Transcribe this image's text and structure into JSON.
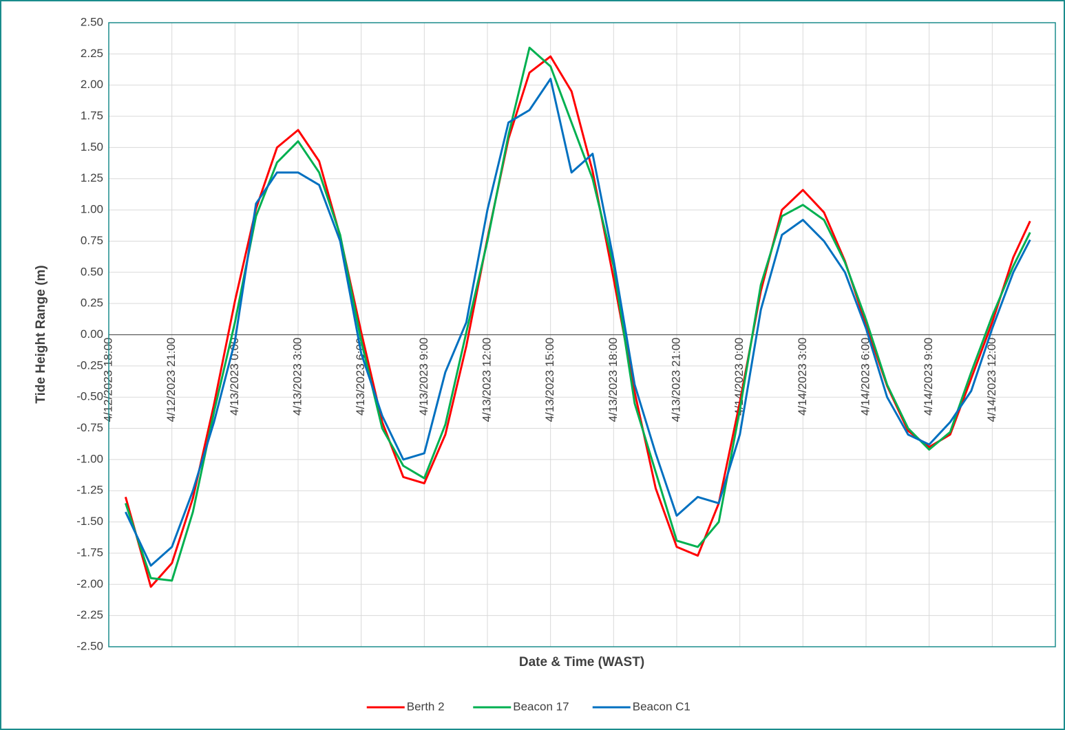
{
  "chart_data": {
    "type": "line",
    "y_label": "Tide Height Range (m)",
    "x_label": "Date & Time (WAST)",
    "x": [
      0.8,
      2,
      3,
      4,
      5,
      6,
      7,
      8,
      9,
      10,
      11,
      12,
      13,
      14,
      15,
      16,
      17,
      18,
      19,
      20,
      21,
      22,
      23,
      24,
      25,
      26,
      27,
      28,
      29,
      30,
      31,
      32,
      33,
      34,
      35,
      36,
      37,
      38,
      39,
      40,
      41,
      42,
      43,
      43.8
    ],
    "series": [
      {
        "name": "Berth 2",
        "color": "#ff0000",
        "values": [
          -1.3,
          -2.02,
          -1.83,
          -1.31,
          -0.56,
          0.27,
          1.01,
          1.5,
          1.64,
          1.39,
          0.79,
          0.02,
          -0.7,
          -1.14,
          -1.19,
          -0.8,
          -0.09,
          0.77,
          1.57,
          2.1,
          2.23,
          1.95,
          1.31,
          0.45,
          -0.46,
          -1.23,
          -1.7,
          -1.77,
          -1.35,
          -0.54,
          0.35,
          1.0,
          1.16,
          0.98,
          0.59,
          0.08,
          -0.41,
          -0.77,
          -0.9,
          -0.8,
          -0.35,
          0.1,
          0.62,
          0.91
        ]
      },
      {
        "name": "Beacon 17",
        "color": "#00b050",
        "values": [
          -1.35,
          -1.95,
          -1.97,
          -1.42,
          -0.62,
          0.1,
          0.95,
          1.38,
          1.55,
          1.3,
          0.8,
          -0.05,
          -0.75,
          -1.05,
          -1.15,
          -0.72,
          0.02,
          0.75,
          1.6,
          2.3,
          2.15,
          1.7,
          1.25,
          0.55,
          -0.55,
          -1.1,
          -1.65,
          -1.7,
          -1.5,
          -0.6,
          0.4,
          0.95,
          1.04,
          0.92,
          0.58,
          0.12,
          -0.4,
          -0.75,
          -0.92,
          -0.78,
          -0.3,
          0.15,
          0.55,
          0.82
        ]
      },
      {
        "name": "Beacon C1",
        "color": "#0070c0",
        "values": [
          -1.42,
          -1.85,
          -1.7,
          -1.25,
          -0.7,
          -0.05,
          1.05,
          1.3,
          1.3,
          1.2,
          0.75,
          -0.15,
          -0.65,
          -1.0,
          -0.95,
          -0.3,
          0.1,
          1.0,
          1.7,
          1.8,
          2.05,
          1.3,
          1.45,
          0.6,
          -0.4,
          -0.95,
          -1.45,
          -1.3,
          -1.35,
          -0.8,
          0.2,
          0.8,
          0.92,
          0.75,
          0.5,
          0.05,
          -0.5,
          -0.8,
          -0.88,
          -0.7,
          -0.45,
          0.05,
          0.5,
          0.76
        ]
      }
    ],
    "xlim": [
      0,
      45
    ],
    "xticks": [
      {
        "value": 0,
        "label": "4/12/2023 18:00"
      },
      {
        "value": 3,
        "label": "4/12/2023 21:00"
      },
      {
        "value": 6,
        "label": "4/13/2023 0:00"
      },
      {
        "value": 9,
        "label": "4/13/2023 3:00"
      },
      {
        "value": 12,
        "label": "4/13/2023 6:00"
      },
      {
        "value": 15,
        "label": "4/13/2023 9:00"
      },
      {
        "value": 18,
        "label": "4/13/2023 12:00"
      },
      {
        "value": 21,
        "label": "4/13/2023 15:00"
      },
      {
        "value": 24,
        "label": "4/13/2023 18:00"
      },
      {
        "value": 27,
        "label": "4/13/2023 21:00"
      },
      {
        "value": 30,
        "label": "4/14/2023 0:00"
      },
      {
        "value": 33,
        "label": "4/14/2023 3:00"
      },
      {
        "value": 36,
        "label": "4/14/2023 6:00"
      },
      {
        "value": 39,
        "label": "4/14/2023 9:00"
      },
      {
        "value": 42,
        "label": "4/14/2023 12:00"
      }
    ],
    "ylim": [
      -2.5,
      2.5
    ],
    "yticks": [
      {
        "value": 2.5,
        "label": "2.50"
      },
      {
        "value": 2.25,
        "label": "2.25"
      },
      {
        "value": 2,
        "label": "2.00"
      },
      {
        "value": 1.75,
        "label": "1.75"
      },
      {
        "value": 1.5,
        "label": "1.50"
      },
      {
        "value": 1.25,
        "label": "1.25"
      },
      {
        "value": 1,
        "label": "1.00"
      },
      {
        "value": 0.75,
        "label": "0.75"
      },
      {
        "value": 0.5,
        "label": "0.50"
      },
      {
        "value": 0.25,
        "label": "0.25"
      },
      {
        "value": 0,
        "label": "0.00"
      },
      {
        "value": -0.25,
        "label": "-0.25"
      },
      {
        "value": -0.5,
        "label": "-0.50"
      },
      {
        "value": -0.75,
        "label": "-0.75"
      },
      {
        "value": -1,
        "label": "-1.00"
      },
      {
        "value": -1.25,
        "label": "-1.25"
      },
      {
        "value": -1.5,
        "label": "-1.50"
      },
      {
        "value": -1.75,
        "label": "-1.75"
      },
      {
        "value": -2,
        "label": "-2.00"
      },
      {
        "value": -2.25,
        "label": "-2.25"
      },
      {
        "value": -2.5,
        "label": "-2.50"
      }
    ],
    "grid": true,
    "legend": "bottom"
  }
}
